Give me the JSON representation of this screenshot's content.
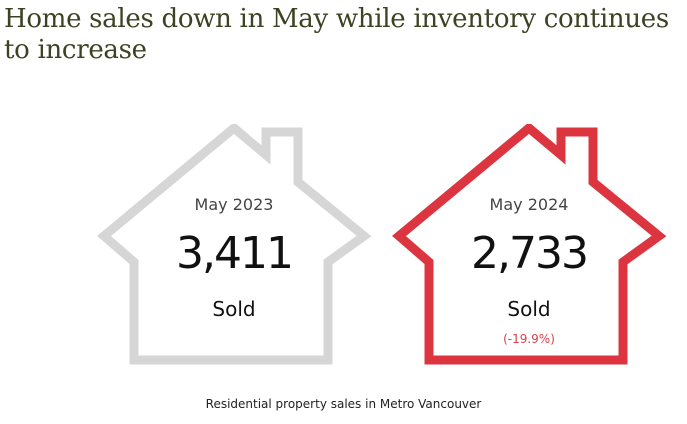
{
  "title": "Home sales down in May while inventory continues to increase",
  "cards": [
    {
      "period": "May 2023",
      "value": "3,411",
      "unit": "Sold",
      "change": "",
      "outline_color": "#d6d6d6"
    },
    {
      "period": "May 2024",
      "value": "2,733",
      "unit": "Sold",
      "change": "(-19.9%)",
      "outline_color": "#dc3540"
    }
  ],
  "caption": "Residential property sales in Metro Vancouver",
  "icons": [
    "house-outline-icon",
    "house-outline-icon"
  ]
}
